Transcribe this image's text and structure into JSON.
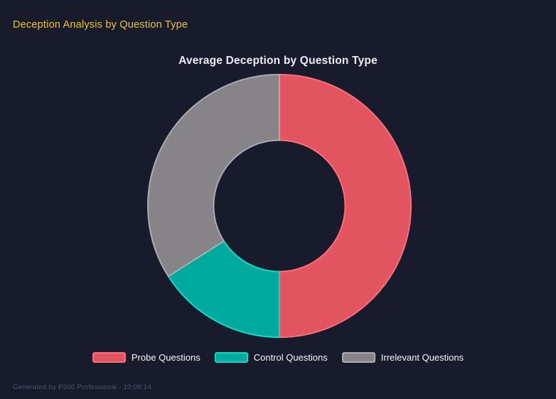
{
  "header": {
    "title": "Deception Analysis by Question Type"
  },
  "chart_data": {
    "type": "pie",
    "subtype": "doughnut",
    "title": "Average Deception by Question Type",
    "categories": [
      "Probe Questions",
      "Control Questions",
      "Irrelevant Questions"
    ],
    "values": [
      50,
      16,
      34
    ],
    "value_unit": "percent_of_total",
    "colors": [
      "#e25460",
      "#00a99d",
      "#868389"
    ],
    "border_colors": [
      "#fa6f79",
      "#14d9c5",
      "#ababb1"
    ],
    "start_angle_deg": 0,
    "direction": "clockwise",
    "inner_radius_ratio": 0.5,
    "legend_position": "bottom",
    "legend": [
      {
        "label": "Probe Questions",
        "color": "#e25460"
      },
      {
        "label": "Control Questions",
        "color": "#00a99d"
      },
      {
        "label": "Irrelevant Questions",
        "color": "#868389"
      }
    ]
  },
  "footer": {
    "text": "Generated by P300 Professional - 10:05:14"
  },
  "theme": {
    "background": "#171b2b",
    "header_title_color": "#f0c420",
    "chart_title_color": "#eceef4",
    "legend_text_color": "#f6f7fa",
    "footer_text_color": "#505570"
  }
}
